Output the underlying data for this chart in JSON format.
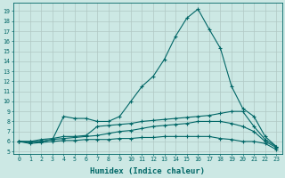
{
  "xlabel": "Humidex (Indice chaleur)",
  "bg_color": "#cce8e4",
  "grid_color": "#b0c8c4",
  "line_color": "#006666",
  "xlim": [
    -0.5,
    23.5
  ],
  "ylim": [
    4.8,
    19.8
  ],
  "xticks": [
    0,
    1,
    2,
    3,
    4,
    5,
    6,
    7,
    8,
    9,
    10,
    11,
    12,
    13,
    14,
    15,
    16,
    17,
    18,
    19,
    20,
    21,
    22,
    23
  ],
  "yticks": [
    5,
    6,
    7,
    8,
    9,
    10,
    11,
    12,
    13,
    14,
    15,
    16,
    17,
    18,
    19
  ],
  "series": [
    {
      "x": [
        0,
        1,
        2,
        3,
        4,
        5,
        6,
        7,
        8,
        9,
        10,
        11,
        12,
        13,
        14,
        15,
        16,
        17,
        18,
        19,
        20,
        21,
        22,
        23
      ],
      "y": [
        6.0,
        6.0,
        6.0,
        6.2,
        8.5,
        8.3,
        8.3,
        8.0,
        8.0,
        8.5,
        10.0,
        11.5,
        12.5,
        14.2,
        16.5,
        18.3,
        19.2,
        17.2,
        15.3,
        11.5,
        9.3,
        8.5,
        6.5,
        5.5
      ]
    },
    {
      "x": [
        0,
        1,
        2,
        3,
        4,
        5,
        6,
        7,
        8,
        9,
        10,
        11,
        12,
        13,
        14,
        15,
        16,
        17,
        18,
        19,
        20,
        21,
        22,
        23
      ],
      "y": [
        6.0,
        6.0,
        6.2,
        6.3,
        6.5,
        6.5,
        6.6,
        7.5,
        7.6,
        7.7,
        7.8,
        8.0,
        8.1,
        8.2,
        8.3,
        8.4,
        8.5,
        8.6,
        8.8,
        9.0,
        9.0,
        7.5,
        6.2,
        5.5
      ]
    },
    {
      "x": [
        0,
        1,
        2,
        3,
        4,
        5,
        6,
        7,
        8,
        9,
        10,
        11,
        12,
        13,
        14,
        15,
        16,
        17,
        18,
        19,
        20,
        21,
        22,
        23
      ],
      "y": [
        6.0,
        5.9,
        6.0,
        6.2,
        6.3,
        6.4,
        6.5,
        6.6,
        6.8,
        7.0,
        7.1,
        7.3,
        7.5,
        7.6,
        7.7,
        7.8,
        8.0,
        8.0,
        8.0,
        7.8,
        7.5,
        7.0,
        6.0,
        5.4
      ]
    },
    {
      "x": [
        0,
        1,
        2,
        3,
        4,
        5,
        6,
        7,
        8,
        9,
        10,
        11,
        12,
        13,
        14,
        15,
        16,
        17,
        18,
        19,
        20,
        21,
        22,
        23
      ],
      "y": [
        6.0,
        5.8,
        5.9,
        6.0,
        6.1,
        6.1,
        6.2,
        6.2,
        6.2,
        6.3,
        6.3,
        6.4,
        6.4,
        6.5,
        6.5,
        6.5,
        6.5,
        6.5,
        6.3,
        6.2,
        6.0,
        6.0,
        5.8,
        5.2
      ]
    }
  ]
}
